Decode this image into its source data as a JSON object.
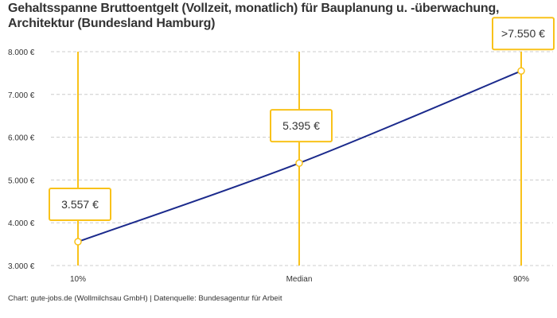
{
  "chart_data": {
    "type": "line",
    "title": "Gehaltsspanne Bruttoentgelt (Vollzeit, monatlich) für Bauplanung u. -überwachung, Architektur (Bundesland Hamburg)",
    "categories": [
      "10%",
      "Median",
      "90%"
    ],
    "values": [
      3557,
      5395,
      7550
    ],
    "data_labels": [
      "3.557 €",
      "5.395 €",
      ">7.550 €"
    ],
    "ylim": [
      3000,
      8000
    ],
    "yticks": [
      3000,
      4000,
      5000,
      6000,
      7000,
      8000
    ],
    "ytick_labels": [
      "3.000 €",
      "4.000 €",
      "5.000 €",
      "6.000 €",
      "7.000 €",
      "8.000 €"
    ],
    "xlabel": "",
    "ylabel": "",
    "grid": true,
    "colors": {
      "line": "#1b2a8c",
      "accent": "#f9c21a",
      "grid": "#cccccc"
    }
  },
  "source": "Chart: gute-jobs.de (Wollmilchsau GmbH) | Datenquelle: Bundesagentur für Arbeit"
}
